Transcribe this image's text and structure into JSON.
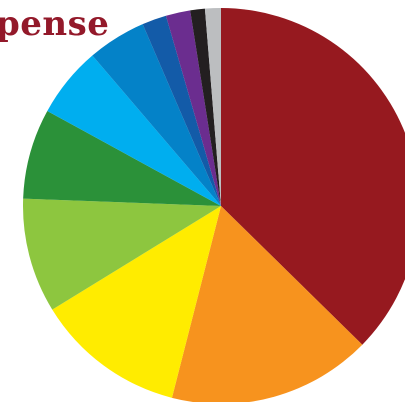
{
  "chart_data": {
    "type": "pie",
    "title": "pense",
    "title_color": "#93192a",
    "start": "12 o'clock",
    "direction": "clockwise",
    "slices": [
      {
        "value": 37.5,
        "color": "#96191f"
      },
      {
        "value": 16.7,
        "color": "#f7931e"
      },
      {
        "value": 12.3,
        "color": "#ffec00"
      },
      {
        "value": 9.4,
        "color": "#8dc63f"
      },
      {
        "value": 7.4,
        "color": "#2b9139"
      },
      {
        "value": 5.8,
        "color": "#00aeef"
      },
      {
        "value": 4.8,
        "color": "#0482c8"
      },
      {
        "value": 2.0,
        "color": "#135ba8"
      },
      {
        "value": 2.0,
        "color": "#6b2d8f"
      },
      {
        "value": 1.2,
        "color": "#231f20"
      },
      {
        "value": 1.3,
        "color": "#bcbec0"
      }
    ]
  }
}
